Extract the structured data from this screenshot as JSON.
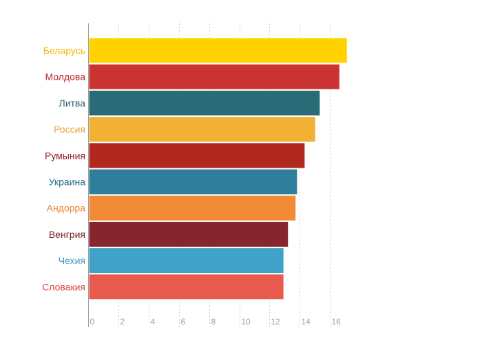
{
  "chart_data": {
    "type": "bar",
    "orientation": "horizontal",
    "title": "",
    "xlabel": "",
    "ylabel": "",
    "xlim": [
      0,
      17.5
    ],
    "ticks": [
      0,
      2,
      4,
      6,
      8,
      10,
      12,
      14,
      16
    ],
    "grid": true,
    "categories": [
      "Беларусь",
      "Молдова",
      "Литва",
      "Россия",
      "Румыния",
      "Украина",
      "Андорра",
      "Венгрия",
      "Чехия",
      "Словакия"
    ],
    "values": [
      17.1,
      16.6,
      15.3,
      15.0,
      14.3,
      13.8,
      13.7,
      13.2,
      12.9,
      12.9
    ],
    "colors": [
      "#ffd200",
      "#cc3333",
      "#2a6b78",
      "#f0b135",
      "#b0281e",
      "#2f7e9c",
      "#f18b35",
      "#85262f",
      "#3fa2c6",
      "#e75a4d"
    ],
    "label_colors": [
      "#f5b800",
      "#b8282b",
      "#2a5e6b",
      "#e8a33a",
      "#8f1d1d",
      "#2c6f8c",
      "#ef8430",
      "#6e1f27",
      "#3c9bbf",
      "#d8473f"
    ]
  }
}
